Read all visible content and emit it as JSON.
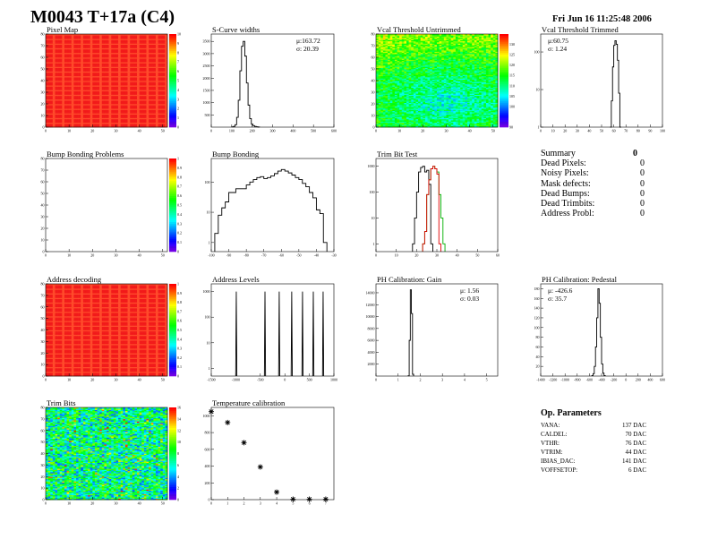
{
  "header": {
    "title": "M0043 T+17a (C4)",
    "date": "Fri Jun 16 11:25:48 2006"
  },
  "summary": {
    "title": "Summary",
    "total": "0",
    "rows": [
      {
        "label": "Dead Pixels:",
        "value": "0"
      },
      {
        "label": "Noisy Pixels:",
        "value": "0"
      },
      {
        "label": "Mask defects:",
        "value": "0"
      },
      {
        "label": "Dead Bumps:",
        "value": "0"
      },
      {
        "label": "Dead Trimbits:",
        "value": "0"
      },
      {
        "label": "Address Probl:",
        "value": "0"
      }
    ]
  },
  "op_parameters": {
    "title": "Op. Parameters",
    "rows": [
      {
        "label": "VANA:",
        "value": "137 DAC"
      },
      {
        "label": "CALDEL:",
        "value": "70 DAC"
      },
      {
        "label": "VTHR:",
        "value": "76 DAC"
      },
      {
        "label": "VTRIM:",
        "value": "44 DAC"
      },
      {
        "label": "IBIAS_DAC:",
        "value": "141 DAC"
      },
      {
        "label": "VOFFSETOP:",
        "value": "6 DAC"
      }
    ]
  },
  "chart_data": [
    {
      "id": "pixel-map",
      "type": "heatmap",
      "title": "Pixel Map",
      "xlim": [
        0,
        52
      ],
      "ylim": [
        0,
        80
      ],
      "xticks": [
        0,
        10,
        20,
        30,
        40,
        50
      ],
      "yticks": [
        0,
        10,
        20,
        30,
        40,
        50,
        60,
        70,
        80
      ],
      "zlim": [
        0,
        10
      ],
      "zticks": [
        0,
        1,
        2,
        3,
        4,
        5,
        6,
        7,
        8,
        9,
        10
      ],
      "pattern": "uniform",
      "zvalue": 10
    },
    {
      "id": "s-curve-widths",
      "type": "bar",
      "title": "S-Curve widths",
      "xlim": [
        0,
        600
      ],
      "ylim": [
        0,
        3800
      ],
      "xticks": [
        0,
        100,
        200,
        300,
        400,
        500,
        600
      ],
      "yticks": [
        500,
        1000,
        1500,
        2000,
        2500,
        3000,
        3500
      ],
      "bin_start": 100,
      "bin_width": 8,
      "series": [
        {
          "color": "#000000",
          "values": [
            10,
            30,
            100,
            400,
            1100,
            2300,
            3300,
            3500,
            2900,
            1800,
            900,
            350,
            120,
            60,
            30,
            15,
            5
          ]
        }
      ],
      "stats": [
        "μ:163.72",
        "σ: 20.39"
      ]
    },
    {
      "id": "vcal-threshold-untrimmed",
      "type": "heatmap",
      "title": "Vcal Threshold Untrimmed",
      "xlim": [
        0,
        52
      ],
      "ylim": [
        0,
        80
      ],
      "xticks": [
        0,
        10,
        20,
        30,
        40,
        50
      ],
      "yticks": [
        0,
        10,
        20,
        30,
        40,
        50,
        60,
        70,
        80
      ],
      "zlim": [
        90,
        135
      ],
      "zticks": [
        90,
        100,
        105,
        110,
        115,
        120,
        125,
        130
      ],
      "pattern": "noisy",
      "zvalue": 112
    },
    {
      "id": "vcal-threshold-trimmed",
      "type": "bar",
      "log": true,
      "title": "Vcal Threshold Trimmed",
      "xlim": [
        0,
        100
      ],
      "ylim": [
        1,
        300
      ],
      "xticks": [
        0,
        10,
        20,
        30,
        40,
        50,
        60,
        70,
        80,
        90,
        100
      ],
      "yticks": [
        1,
        10,
        100
      ],
      "bin_start": 57,
      "bin_width": 1,
      "series": [
        {
          "color": "#000000",
          "values": [
            1,
            5,
            40,
            150,
            200,
            160,
            60,
            8,
            1
          ]
        }
      ],
      "stats": [
        "μ:60.75",
        "σ: 1.24"
      ]
    },
    {
      "id": "bump-bonding-problems",
      "type": "heatmap",
      "title": "Bump Bonding Problems",
      "xlim": [
        0,
        52
      ],
      "ylim": [
        0,
        80
      ],
      "xticks": [
        0,
        10,
        20,
        30,
        40,
        50
      ],
      "yticks": [
        0,
        10,
        20,
        30,
        40,
        50,
        60,
        70,
        80
      ],
      "zlim": [
        0,
        1
      ],
      "zticks": [
        0,
        0.1,
        0.2,
        0.3,
        0.4,
        0.5,
        0.6,
        0.7,
        0.8,
        0.9,
        1
      ],
      "pattern": "empty"
    },
    {
      "id": "bump-bonding",
      "type": "bar",
      "log": true,
      "title": "Bump Bonding",
      "xlim": [
        -100,
        -30
      ],
      "ylim": [
        0.5,
        600
      ],
      "xticks": [
        -100,
        -90,
        -80,
        -70,
        -60,
        -50,
        -40,
        -30
      ],
      "yticks": [
        1,
        10,
        100
      ],
      "bin_start": -98,
      "bin_width": 2,
      "series": [
        {
          "color": "#000000",
          "values": [
            2,
            8,
            14,
            22,
            45,
            45,
            60,
            60,
            60,
            80,
            100,
            120,
            140,
            150,
            130,
            140,
            160,
            190,
            230,
            260,
            230,
            200,
            170,
            140,
            120,
            90,
            70,
            45,
            30,
            12,
            9,
            1
          ]
        }
      ]
    },
    {
      "id": "trim-bit-test",
      "type": "bar",
      "log": true,
      "title": "Trim Bit Test",
      "xlim": [
        0,
        60
      ],
      "ylim": [
        0.5,
        2000
      ],
      "xticks": [
        0,
        10,
        20,
        30,
        40,
        50,
        60
      ],
      "yticks": [
        1,
        10,
        100,
        1000
      ],
      "bin_start": 0,
      "bin_width": 1,
      "series": [
        {
          "color": "#000000",
          "start": 18,
          "values": [
            1,
            10,
            100,
            600,
            900,
            1000,
            600,
            700,
            200,
            1
          ]
        },
        {
          "color": "#00b000",
          "start": 23,
          "values": [
            1,
            3,
            80,
            300,
            800,
            1000,
            800,
            600,
            80,
            10,
            1
          ]
        },
        {
          "color": "#e00000",
          "start": 23,
          "values": [
            1,
            3,
            80,
            300,
            800,
            1000,
            800,
            500,
            1
          ]
        }
      ]
    },
    {
      "id": "address-decoding",
      "type": "heatmap",
      "title": "Address decoding",
      "xlim": [
        0,
        52
      ],
      "ylim": [
        0,
        80
      ],
      "xticks": [
        0,
        10,
        20,
        30,
        40,
        50
      ],
      "yticks": [
        0,
        10,
        20,
        30,
        40,
        50,
        60,
        70,
        80
      ],
      "zlim": [
        0,
        1
      ],
      "zticks": [
        0,
        0.1,
        0.2,
        0.3,
        0.4,
        0.5,
        0.6,
        0.7,
        0.8,
        0.9,
        1
      ],
      "pattern": "uniform",
      "zvalue": 1
    },
    {
      "id": "address-levels",
      "type": "bar",
      "log": true,
      "title": "Address Levels",
      "xlim": [
        -1500,
        1000
      ],
      "ylim": [
        0.5,
        2000
      ],
      "xticks": [
        -1500,
        -1000,
        -500,
        0,
        500,
        1000
      ],
      "yticks": [
        1,
        10,
        100,
        1000
      ],
      "peaks": [
        -990,
        -405,
        -115,
        140,
        360,
        580,
        780
      ],
      "peak_height": 1000
    },
    {
      "id": "ph-calibration-gain",
      "type": "bar",
      "title": "PH Calibration: Gain",
      "xlim": [
        0,
        5.5
      ],
      "ylim": [
        0,
        15500
      ],
      "xticks": [
        0,
        1,
        2,
        3,
        4,
        5
      ],
      "yticks": [
        2000,
        4000,
        6000,
        8000,
        10000,
        12000,
        14000
      ],
      "bin_start": 1.45,
      "bin_width": 0.05,
      "series": [
        {
          "color": "#000000",
          "values": [
            50,
            6000,
            14500,
            10500,
            300
          ]
        }
      ],
      "stats": [
        "μ: 1.56",
        "σ: 0.03"
      ]
    },
    {
      "id": "ph-calibration-pedestal",
      "type": "bar",
      "title": "PH Calibration: Pedestal",
      "xlim": [
        -1400,
        600
      ],
      "ylim": [
        0,
        190
      ],
      "xticks": [
        -1400,
        -1200,
        -1000,
        -800,
        -600,
        -400,
        -200,
        0,
        200,
        400,
        600
      ],
      "yticks": [
        20,
        40,
        60,
        80,
        100,
        120,
        140,
        160,
        180
      ],
      "bin_start": -560,
      "bin_width": 20,
      "series": [
        {
          "color": "#000000",
          "values": [
            1,
            5,
            20,
            60,
            120,
            180,
            150,
            80,
            25,
            6,
            1
          ]
        }
      ],
      "stats": [
        "μ: -426.6",
        "σ: 35.7"
      ]
    },
    {
      "id": "trim-bits",
      "type": "heatmap",
      "title": "Trim Bits",
      "xlim": [
        0,
        52
      ],
      "ylim": [
        0,
        80
      ],
      "xticks": [
        0,
        10,
        20,
        30,
        40,
        50
      ],
      "yticks": [
        0,
        10,
        20,
        30,
        40,
        50,
        60,
        70,
        80
      ],
      "zlim": [
        0,
        16
      ],
      "zticks": [
        0,
        2,
        4,
        6,
        8,
        10,
        12,
        14,
        16
      ],
      "pattern": "noisy-wide",
      "zvalue": 7
    },
    {
      "id": "temperature-calibration",
      "type": "scatter",
      "title": "Temperature calibration",
      "xlim": [
        0,
        7.5
      ],
      "ylim": [
        0,
        1100
      ],
      "xticks": [
        0,
        1,
        2,
        3,
        4,
        5,
        6,
        7
      ],
      "yticks": [
        0,
        200,
        400,
        600,
        800,
        1000
      ],
      "x": [
        0,
        1,
        2,
        3,
        4,
        5,
        6,
        7
      ],
      "y": [
        1050,
        920,
        680,
        390,
        90,
        5,
        5,
        5
      ]
    }
  ]
}
